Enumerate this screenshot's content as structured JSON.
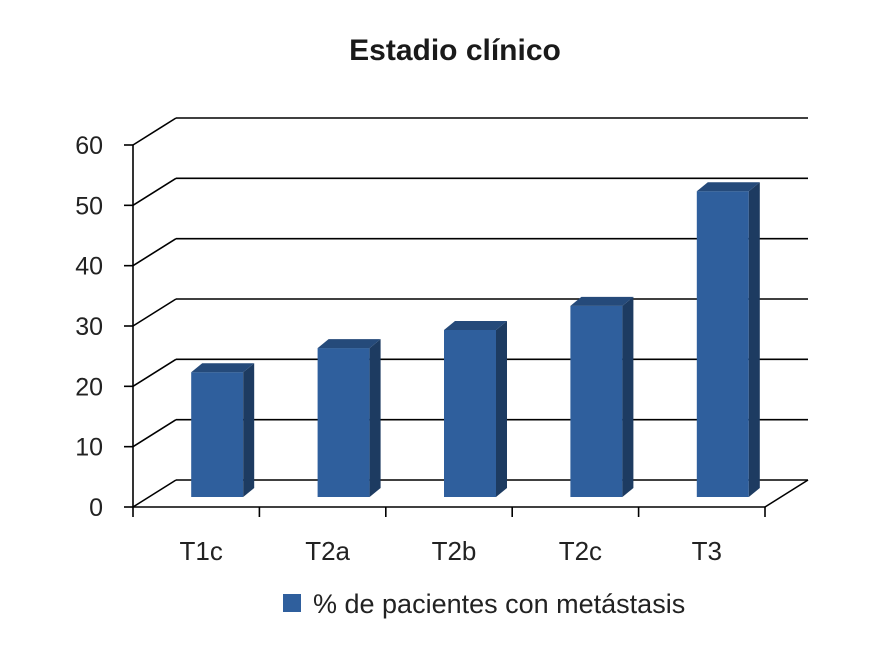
{
  "chart_data": {
    "type": "bar",
    "title": "Estadio clínico",
    "categories": [
      "T1c",
      "T2a",
      "T2b",
      "T2c",
      "T3"
    ],
    "series": [
      {
        "name": "% de pacientes con metástasis",
        "values": [
          24,
          28,
          31,
          35,
          54
        ],
        "color": "#2f5f9d"
      }
    ],
    "yticks": [
      "0",
      "10",
      "20",
      "30",
      "40",
      "50",
      "60"
    ],
    "ylim": [
      0,
      60
    ],
    "grid": true,
    "legend": "bottom",
    "style": "3d"
  }
}
